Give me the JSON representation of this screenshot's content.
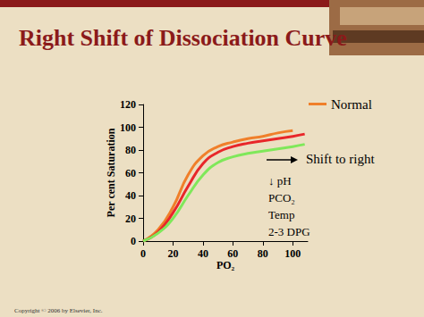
{
  "chart_data": {
    "type": "line",
    "title": "Right Shift of Dissociation Curve",
    "x_label": "PO₂",
    "y_label": "Per cent Saturation",
    "x": [
      0,
      10,
      20,
      30,
      40,
      50,
      60,
      70,
      80,
      90,
      100,
      108
    ],
    "series": [
      {
        "name": "Normal",
        "color": "#f07f2a",
        "values": [
          0,
          10,
          30,
          58,
          75,
          83,
          87,
          90,
          92,
          95,
          97,
          null
        ]
      },
      {
        "color": "#e8262a",
        "values": [
          0,
          8,
          25,
          48,
          68,
          78,
          83,
          86,
          88,
          90,
          92,
          94
        ]
      },
      {
        "color": "#7fe85a",
        "values": [
          0,
          7,
          20,
          40,
          58,
          69,
          74,
          77,
          79,
          81,
          83,
          85
        ]
      }
    ],
    "xlim": [
      0,
      110
    ],
    "ylim": [
      0,
      120
    ],
    "xticks": [
      0,
      20,
      40,
      60,
      80,
      100
    ],
    "yticks": [
      0,
      20,
      40,
      60,
      80,
      100,
      120
    ],
    "grid": false,
    "legend": "upper right",
    "annotations": [
      "Shift to right",
      "↓ pH",
      "PCO₂",
      "Temp",
      "2-3 DPG"
    ],
    "copyright": "Copyright © 2006 by Elsevier, Inc."
  }
}
